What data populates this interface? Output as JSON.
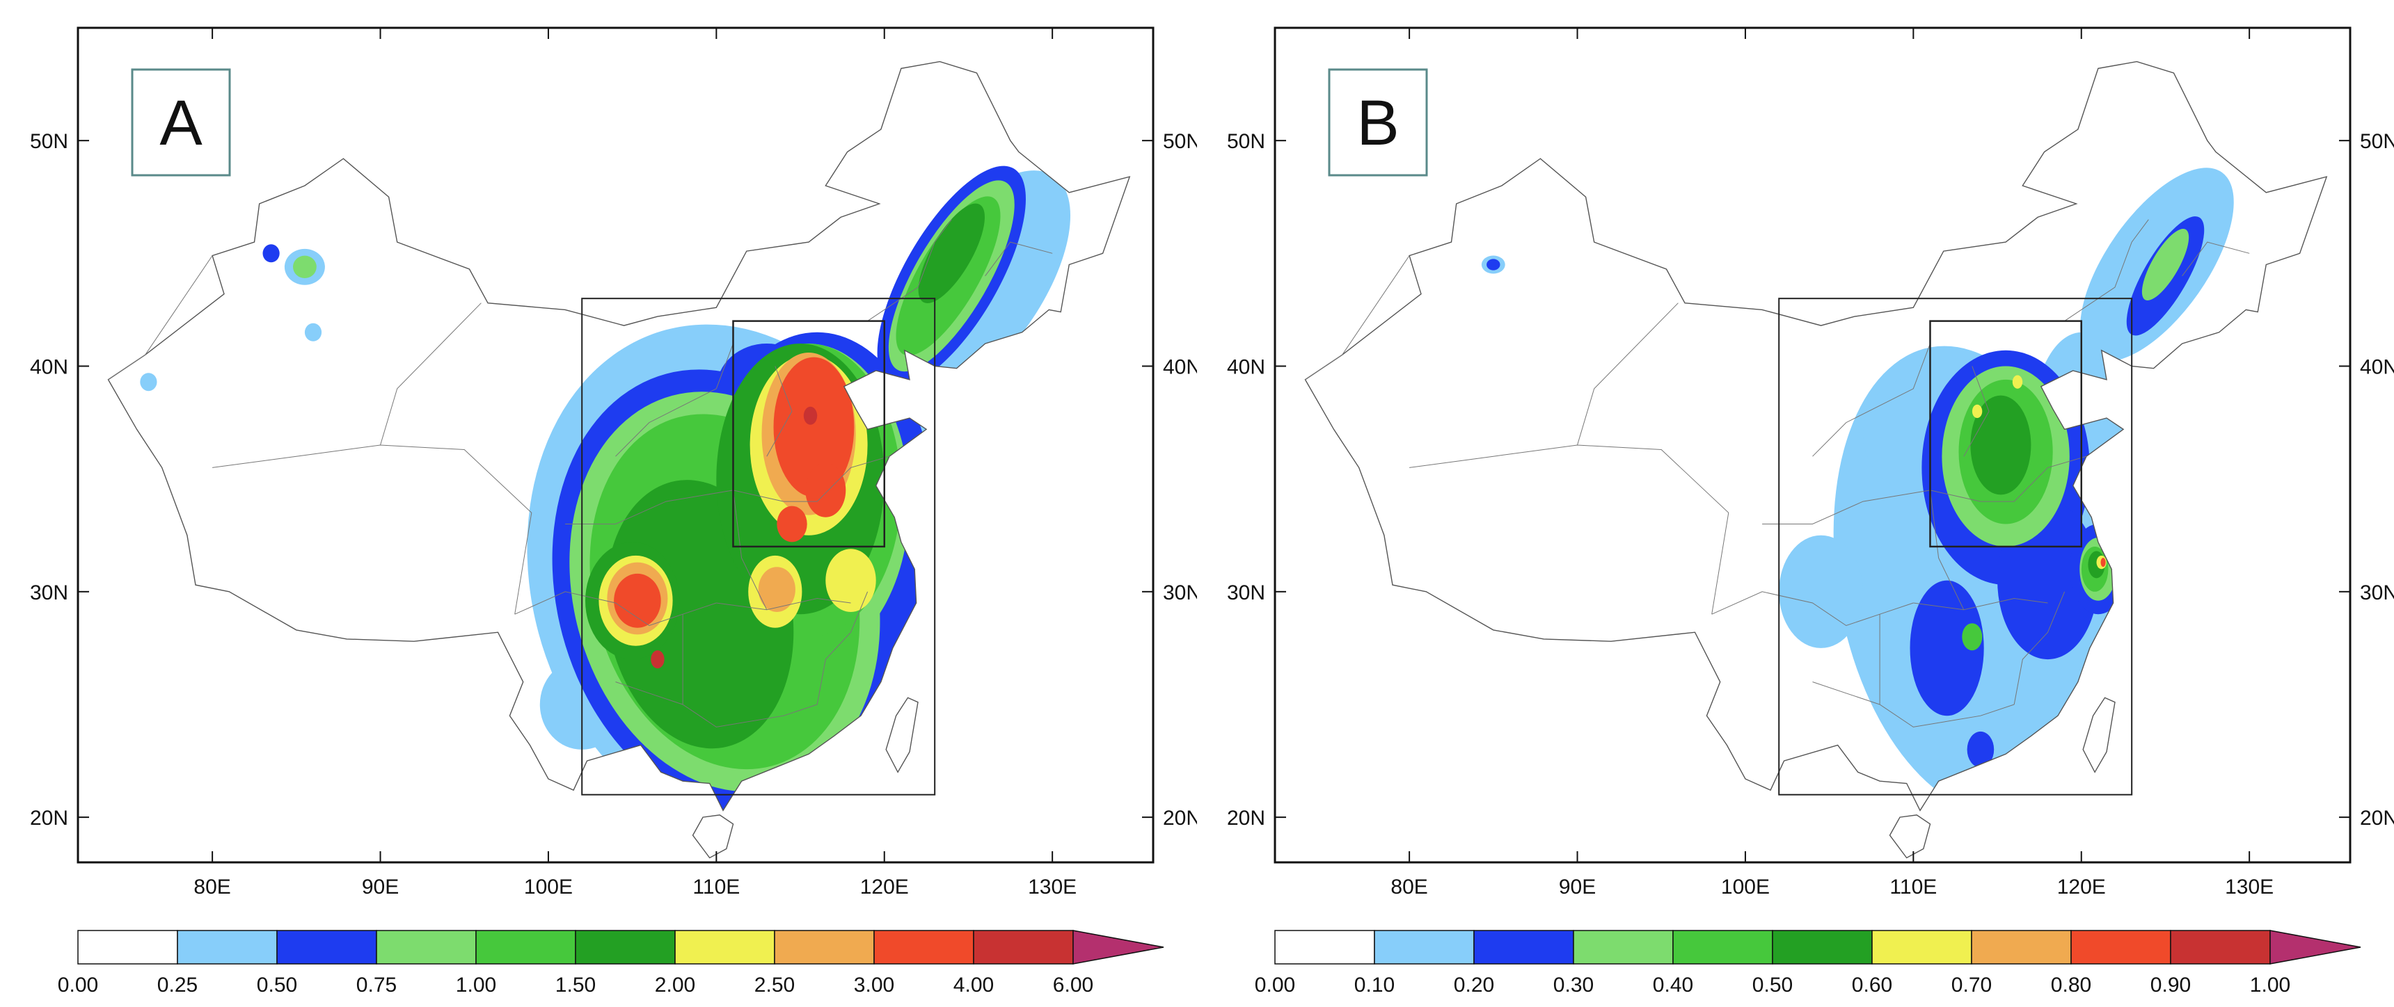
{
  "panels": [
    {
      "id": "A",
      "label": "A",
      "x_ticks": [
        "80E",
        "90E",
        "100E",
        "110E",
        "120E",
        "130E"
      ],
      "y_ticks": [
        "20N",
        "30N",
        "40N",
        "50N"
      ],
      "colorbar": {
        "levels": [
          "0.00",
          "0.25",
          "0.50",
          "0.75",
          "1.00",
          "1.50",
          "2.00",
          "2.50",
          "3.00",
          "4.00",
          "6.00"
        ],
        "colors": [
          "#ffffff",
          "#87cefa",
          "#1e3cf0",
          "#7ddc6e",
          "#46c83c",
          "#23a023",
          "#f0f050",
          "#f0aa50",
          "#f04a2a",
          "#c83232",
          "#b4306e"
        ]
      }
    },
    {
      "id": "B",
      "label": "B",
      "x_ticks": [
        "80E",
        "90E",
        "100E",
        "110E",
        "120E",
        "130E"
      ],
      "y_ticks": [
        "20N",
        "30N",
        "40N",
        "50N"
      ],
      "colorbar": {
        "levels": [
          "0.00",
          "0.10",
          "0.20",
          "0.30",
          "0.40",
          "0.50",
          "0.60",
          "0.70",
          "0.80",
          "0.90",
          "1.00"
        ],
        "colors": [
          "#ffffff",
          "#87cefa",
          "#1e3cf0",
          "#7ddc6e",
          "#46c83c",
          "#23a023",
          "#f0f050",
          "#f0aa50",
          "#f04a2a",
          "#c83232",
          "#b4306e"
        ]
      }
    }
  ]
}
